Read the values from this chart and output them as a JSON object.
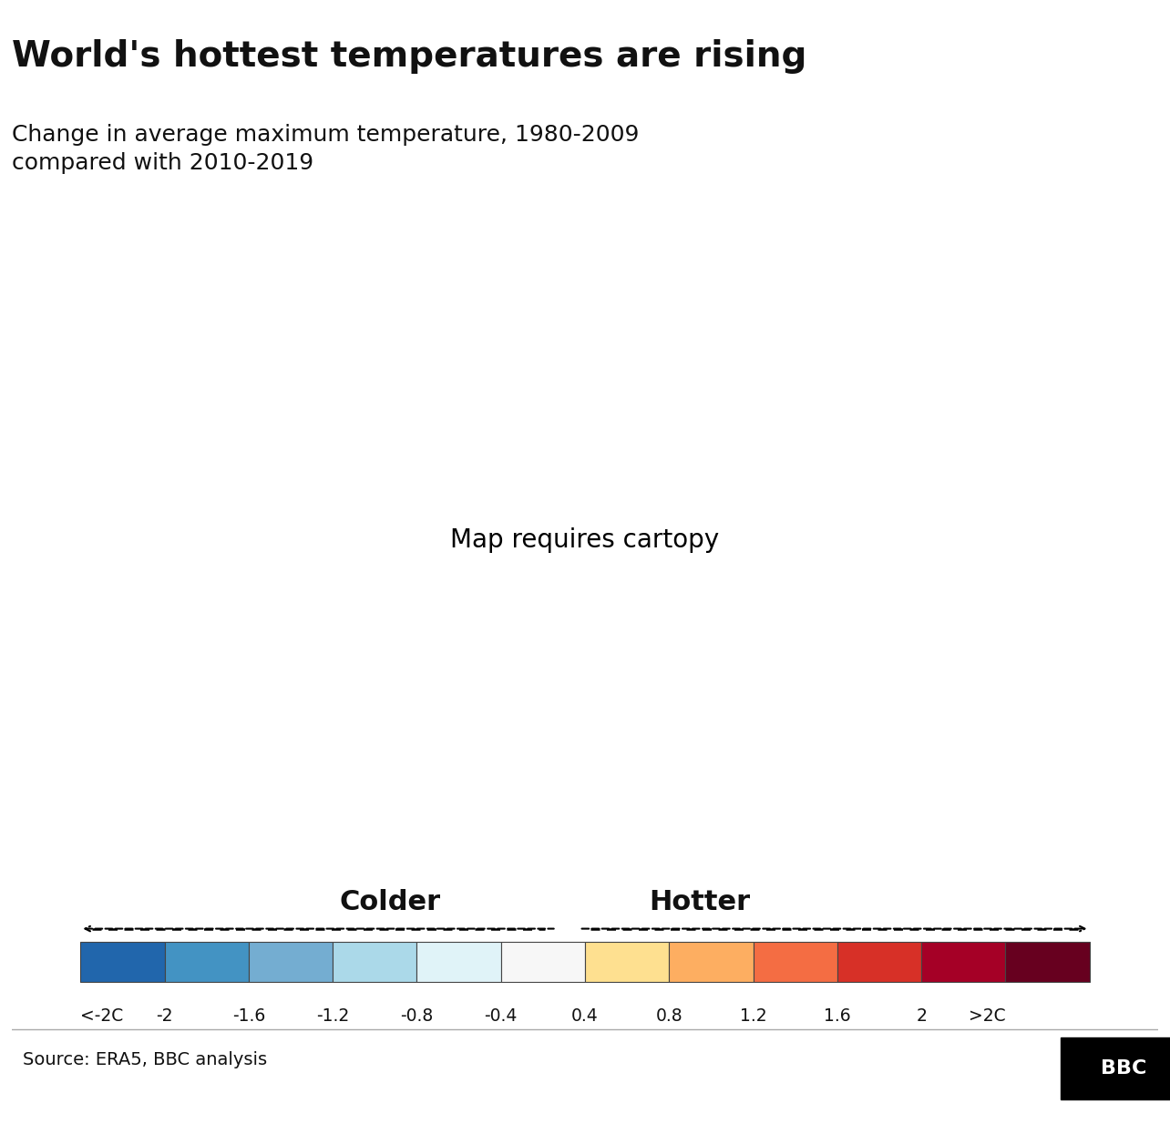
{
  "title": "World's hottest temperatures are rising",
  "subtitle_line1": "Change in average maximum temperature, 1980-2009",
  "subtitle_line2": "compared with 2010-2019",
  "source": "Source: ERA5, BBC analysis",
  "colder_label": "Colder",
  "hotter_label": "Hotter",
  "colorbar_labels": [
    "<-2C",
    "-2",
    "-1.6",
    "-1.2",
    "-0.8",
    "-0.4",
    "0.4",
    "0.8",
    "1.2",
    "1.6",
    "2",
    ">2C"
  ],
  "colorbar_colors": [
    "#2166ac",
    "#4393c3",
    "#74add1",
    "#abd9e9",
    "#e0f3f8",
    "#f7f7f7",
    "#fee090",
    "#fdae61",
    "#f46d43",
    "#d73027",
    "#a50026",
    "#67001f"
  ],
  "background_color": "#ffffff",
  "title_fontsize": 28,
  "subtitle_fontsize": 18,
  "source_fontsize": 14,
  "label_fontsize": 20
}
